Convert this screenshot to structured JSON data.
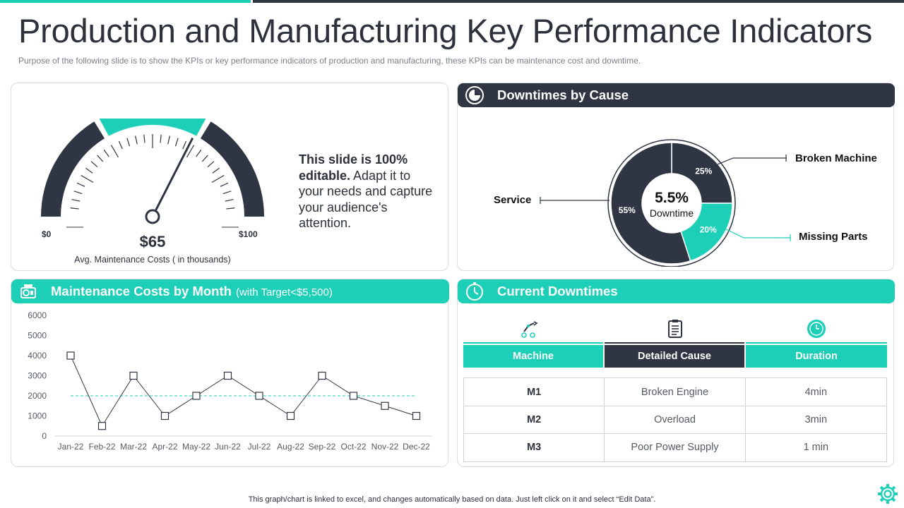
{
  "page": {
    "title": "Production and Manufacturing Key Performance Indicators",
    "subtitle": "Purpose of the following slide is to show the KPIs or key performance  indicators of production  and  manufacturing,  these KPIs can be maintenance cost and downtime.",
    "footer": "This graph/chart is linked to excel,  and changes automatically based on data. Just left click on it and select “Edit Data”."
  },
  "colors": {
    "teal": "#1ecfb8",
    "dark": "#2f3542",
    "text": "#2c313b"
  },
  "gauge": {
    "value_label": "$65",
    "value": 65,
    "min_label": "$0",
    "max_label": "$100",
    "caption": "Avg. Maintenance  Costs ( in thousands)"
  },
  "note": {
    "bold": "This slide is 100% editable.",
    "rest": " Adapt it to your needs and capture your audience's attention."
  },
  "downtime": {
    "header": "Downtimes by Cause",
    "center_value": "5.5%",
    "center_label": "Downtime",
    "slices": [
      {
        "name": "Broken Machine",
        "percent": 25,
        "label": "25%",
        "color": "#2f3542"
      },
      {
        "name": "Missing Parts",
        "percent": 20,
        "label": "20%",
        "color": "#1ecfb8"
      },
      {
        "name": "Service",
        "percent": 55,
        "label": "55%",
        "color": "#2f3542"
      }
    ]
  },
  "maintenance": {
    "header": "Maintenance Costs by Month",
    "header_sub": "(with Target<$5,500)"
  },
  "chart_data": {
    "type": "line",
    "title": "Maintenance Costs by Month",
    "categories": [
      "Jan-22",
      "Feb-22",
      "Mar-22",
      "Apr-22",
      "May-22",
      "Jun-22",
      "Jul-22",
      "Aug-22",
      "Sep-22",
      "Oct-22",
      "Nov-22",
      "Dec-22"
    ],
    "series": [
      {
        "name": "Maintenance Cost",
        "values": [
          4000,
          500,
          3000,
          1000,
          2000,
          3000,
          2000,
          1000,
          3000,
          2000,
          1500,
          1000
        ]
      },
      {
        "name": "Target",
        "values": [
          2000,
          2000,
          2000,
          2000,
          2000,
          2000,
          2000,
          2000,
          2000,
          2000,
          2000,
          2000
        ]
      }
    ],
    "ylim": [
      0,
      6000
    ],
    "yticks": [
      "0",
      "1000",
      "2000",
      "3000",
      "4000",
      "5000",
      "6000"
    ]
  },
  "current": {
    "header": "Current Downtimes",
    "columns": [
      "Machine",
      "Detailed Cause",
      "Duration"
    ],
    "rows": [
      {
        "machine": "M1",
        "cause": "Broken Engine",
        "duration": "4min"
      },
      {
        "machine": "M2",
        "cause": "Overload",
        "duration": "3min"
      },
      {
        "machine": "M3",
        "cause": "Poor Power Supply",
        "duration": "1 min"
      }
    ]
  }
}
